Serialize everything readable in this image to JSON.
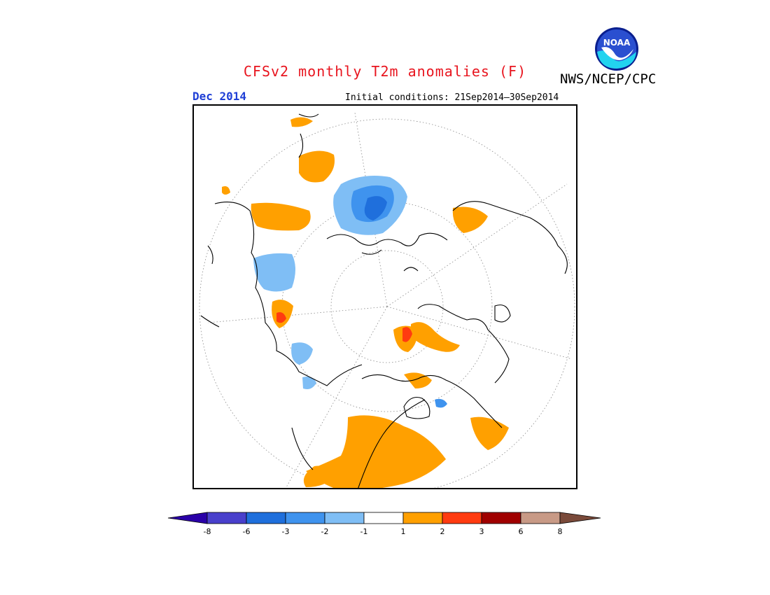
{
  "header": {
    "title": "CFSv2 monthly T2m anomalies (F)",
    "agency": "NWS/NCEP/CPC",
    "logo_text": "NOAA",
    "month": "Dec 2014",
    "initial_conditions": "Initial conditions: 21Sep2014–30Sep2014"
  },
  "map": {
    "projection": "north polar stereographic",
    "graticule": "dotted"
  },
  "colorbar": {
    "labels": [
      "-8",
      "-6",
      "-3",
      "-2",
      "-1",
      "1",
      "2",
      "3",
      "6",
      "8"
    ],
    "bins": [
      {
        "color": "#2a00a8",
        "role": "low-extension"
      },
      {
        "color": "#4940cc"
      },
      {
        "color": "#1f6fdc"
      },
      {
        "color": "#3f93ee"
      },
      {
        "color": "#7fbef5"
      },
      {
        "color": "#ffffff"
      },
      {
        "color": "#ffa000"
      },
      {
        "color": "#ff3b10"
      },
      {
        "color": "#a00000"
      },
      {
        "color": "#c89a86"
      },
      {
        "color": "#7a4a3a",
        "role": "high-extension"
      }
    ]
  },
  "colors": {
    "title": "#e8141e",
    "month": "#1f3fd6",
    "warm1": "#ffa000",
    "warm2": "#ff3b10",
    "warm3": "#a00000",
    "cool1": "#7fbef5",
    "cool2": "#3f93ee",
    "cool3": "#1f6fdc"
  }
}
